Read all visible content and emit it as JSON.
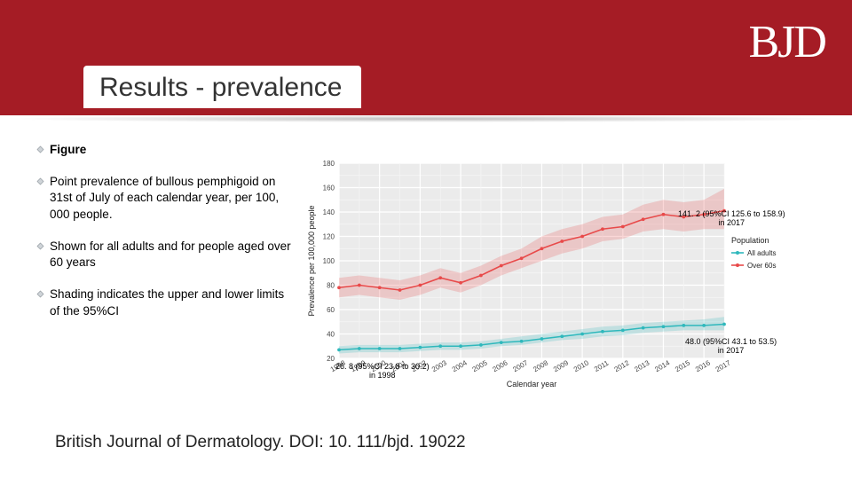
{
  "header": {
    "title": "Results - prevalence",
    "logo": "BJD"
  },
  "bullets": [
    {
      "text": "Figure",
      "bold": true
    },
    {
      "text": "Point prevalence of bullous pemphigoid on 31st of July of each calendar year, per 100, 000 people."
    },
    {
      "text": "Shown for all adults and for people aged over 60 years"
    },
    {
      "text": "Shading indicates the upper and lower limits of the 95%CI"
    }
  ],
  "footer": "British Journal of Dermatology. DOI: 10. 111/bjd. 19022",
  "chart": {
    "type": "line",
    "background": "#ebebeb",
    "grid_color": "#ffffff",
    "xlabel": "Calendar year",
    "ylabel": "Prevalence per 100,000 people",
    "label_fontsize": 9,
    "tick_fontsize": 8,
    "years": [
      1998,
      1999,
      2000,
      2001,
      2002,
      2003,
      2004,
      2005,
      2006,
      2007,
      2008,
      2009,
      2010,
      2011,
      2012,
      2013,
      2014,
      2015,
      2016,
      2017
    ],
    "ylim": [
      20,
      180
    ],
    "yticks": [
      20,
      40,
      60,
      80,
      100,
      120,
      140,
      160,
      180
    ],
    "legend": {
      "title": "Population",
      "items": [
        {
          "label": "All adults",
          "color": "#2fb8bc"
        },
        {
          "label": "Over 60s",
          "color": "#e84a4a"
        }
      ]
    },
    "series": [
      {
        "name": "Over 60s",
        "color": "#e84a4a",
        "values": [
          78,
          80,
          78,
          76,
          80,
          86,
          82,
          88,
          96,
          102,
          110,
          116,
          120,
          126,
          128,
          134,
          138,
          136,
          138,
          141
        ],
        "lower": [
          70,
          72,
          70,
          68,
          72,
          78,
          74,
          80,
          88,
          94,
          100,
          106,
          110,
          116,
          118,
          124,
          126,
          124,
          126,
          126
        ],
        "upper": [
          86,
          88,
          86,
          84,
          88,
          94,
          90,
          96,
          104,
          110,
          120,
          126,
          130,
          136,
          138,
          146,
          150,
          148,
          150,
          159
        ]
      },
      {
        "name": "All adults",
        "color": "#2fb8bc",
        "values": [
          27,
          28,
          28,
          28,
          29,
          30,
          30,
          31,
          33,
          34,
          36,
          38,
          40,
          42,
          43,
          45,
          46,
          47,
          47,
          48
        ],
        "lower": [
          24,
          25,
          25,
          25,
          26,
          27,
          27,
          28,
          30,
          31,
          33,
          35,
          36,
          38,
          39,
          41,
          42,
          43,
          43,
          43
        ],
        "upper": [
          30,
          31,
          31,
          31,
          32,
          33,
          33,
          34,
          36,
          38,
          40,
          42,
          44,
          46,
          47,
          49,
          50,
          51,
          52,
          54
        ]
      }
    ],
    "annotations": [
      {
        "line1": "26. 8 (95%CI 23.8 to 30.2)",
        "line2": "in 1998"
      },
      {
        "line1": "141. 2 (95%CI 125.6 to 158.9)",
        "line2": "in 2017"
      },
      {
        "line1": "48.0 (95%CI 43.1 to 53.5)",
        "line2": "in 2017"
      }
    ]
  }
}
